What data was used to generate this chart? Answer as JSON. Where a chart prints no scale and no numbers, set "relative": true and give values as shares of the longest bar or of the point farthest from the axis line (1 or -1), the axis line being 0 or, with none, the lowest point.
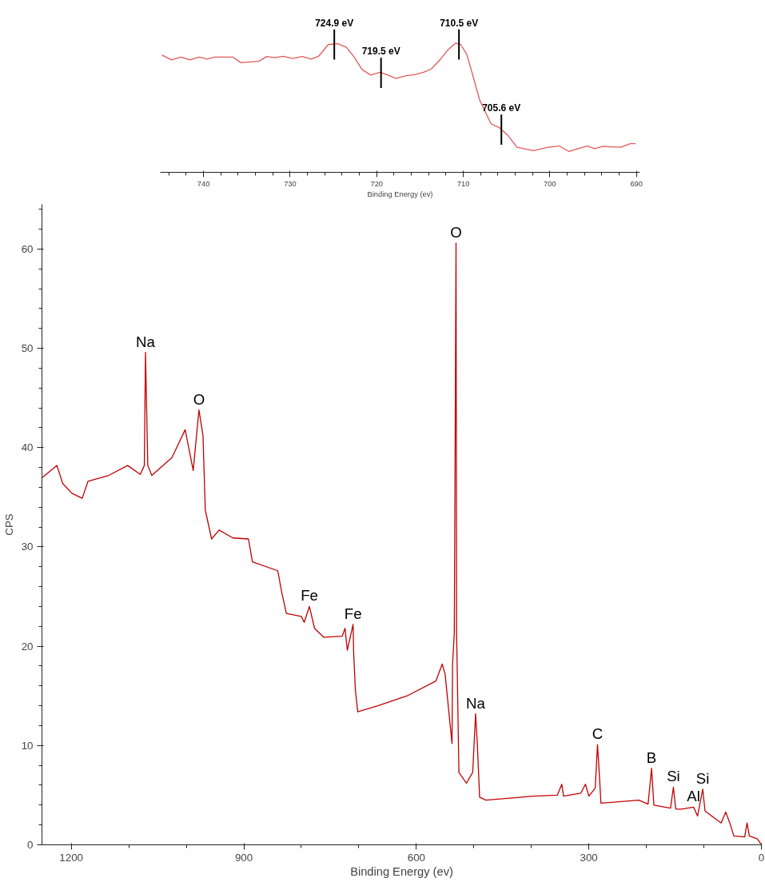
{
  "chart_data": [
    {
      "type": "line",
      "relative": true,
      "xlabel": "Binding Energy (ev)",
      "xlim": [
        745,
        689.6
      ],
      "xticks": [
        {
          "value": 744,
          "label": null
        },
        {
          "value": 742,
          "label": null
        },
        740,
        {
          "value": 738,
          "label": null
        },
        {
          "value": 736,
          "label": null
        },
        {
          "value": 734,
          "label": null
        },
        {
          "value": 732,
          "label": null
        },
        730,
        {
          "value": 728,
          "label": null
        },
        {
          "value": 726,
          "label": null
        },
        {
          "value": 724,
          "label": null
        },
        {
          "value": 722,
          "label": null
        },
        720,
        {
          "value": 718,
          "label": null
        },
        {
          "value": 716,
          "label": null
        },
        {
          "value": 714,
          "label": null
        },
        {
          "value": 712,
          "label": null
        },
        710,
        {
          "value": 708,
          "label": null
        },
        {
          "value": 706,
          "label": null
        },
        {
          "value": 704,
          "label": null
        },
        {
          "value": 702,
          "label": null
        },
        700,
        {
          "value": 698,
          "label": null
        },
        {
          "value": 696,
          "label": null
        },
        {
          "value": 694,
          "label": null
        },
        {
          "value": 692,
          "label": null
        },
        690
      ],
      "x": [
        744.8,
        743.7,
        742.6,
        741.6,
        740.5,
        739.6,
        738.7,
        736.6,
        735.7,
        733.6,
        732.7,
        731.8,
        730.8,
        729.7,
        728.6,
        727.6,
        726.7,
        725.6,
        724.5,
        723.5,
        722.6,
        721.7,
        720.7,
        719.6,
        718.7,
        717.8,
        716.6,
        715.5,
        714.6,
        713.7,
        712.7,
        711.8,
        710.9,
        710.3,
        709.6,
        709.0,
        708.1,
        706.8,
        705.8,
        704.9,
        703.8,
        701.9,
        700.2,
        698.9,
        697.8,
        695.7,
        694.8,
        693.9,
        691.8,
        690.7,
        690.1
      ],
      "series": [
        {
          "color": "#e05a5a",
          "values": [
            0.908,
            0.871,
            0.892,
            0.871,
            0.892,
            0.877,
            0.892,
            0.892,
            0.849,
            0.86,
            0.897,
            0.888,
            0.899,
            0.882,
            0.897,
            0.877,
            0.899,
            0.989,
            0.996,
            0.968,
            0.892,
            0.796,
            0.753,
            0.774,
            0.753,
            0.727,
            0.748,
            0.757,
            0.774,
            0.8,
            0.871,
            0.946,
            1.0,
            0.989,
            0.914,
            0.774,
            0.559,
            0.376,
            0.344,
            0.29,
            0.194,
            0.168,
            0.194,
            0.204,
            0.161,
            0.204,
            0.183,
            0.2,
            0.194,
            0.222,
            0.222
          ]
        }
      ],
      "annotations": [
        {
          "text": "724.9 eV",
          "x": 724.9,
          "y": 0.99
        },
        {
          "text": "719.5 eV",
          "x": 719.5,
          "y": 0.77
        },
        {
          "text": "710.5 eV",
          "x": 710.5,
          "y": 0.99
        },
        {
          "text": "705.6 eV",
          "x": 705.6,
          "y": 0.33
        }
      ]
    },
    {
      "type": "line",
      "xlabel": "Binding Energy (ev)",
      "ylabel": "CPS",
      "xlim": [
        1251,
        0
      ],
      "ylim": [
        0,
        64.5
      ],
      "xticks": [
        1200,
        {
          "value": 1100,
          "label": null
        },
        {
          "value": 1000,
          "label": null
        },
        900,
        {
          "value": 800,
          "label": null
        },
        {
          "value": 700,
          "label": null
        },
        600,
        {
          "value": 500,
          "label": null
        },
        {
          "value": 400,
          "label": null
        },
        300,
        {
          "value": 200,
          "label": null
        },
        {
          "value": 100,
          "label": null
        },
        0
      ],
      "yticks": [
        0,
        {
          "value": 2,
          "label": null
        },
        {
          "value": 4,
          "label": null
        },
        {
          "value": 6,
          "label": null
        },
        {
          "value": 8,
          "label": null
        },
        10,
        {
          "value": 12,
          "label": null
        },
        {
          "value": 14,
          "label": null
        },
        {
          "value": 16,
          "label": null
        },
        {
          "value": 18,
          "label": null
        },
        20,
        {
          "value": 22,
          "label": null
        },
        {
          "value": 24,
          "label": null
        },
        {
          "value": 26,
          "label": null
        },
        {
          "value": 28,
          "label": null
        },
        30,
        {
          "value": 32,
          "label": null
        },
        {
          "value": 34,
          "label": null
        },
        {
          "value": 36,
          "label": null
        },
        {
          "value": 38,
          "label": null
        },
        40,
        {
          "value": 42,
          "label": null
        },
        {
          "value": 44,
          "label": null
        },
        {
          "value": 46,
          "label": null
        },
        {
          "value": 48,
          "label": null
        },
        50,
        {
          "value": 52,
          "label": null
        },
        {
          "value": 54,
          "label": null
        },
        {
          "value": 56,
          "label": null
        },
        {
          "value": 58,
          "label": null
        },
        60,
        {
          "value": 62,
          "label": null
        },
        {
          "value": 64,
          "label": null
        }
      ],
      "x": [
        1250,
        1225,
        1215,
        1199,
        1181,
        1171,
        1135,
        1102,
        1080,
        1073,
        1071,
        1067,
        1060,
        1025,
        1016,
        1002,
        988,
        978,
        971,
        967,
        956,
        943,
        919,
        892,
        885,
        841,
        834,
        826,
        800,
        795,
        786,
        777,
        761,
        729,
        724,
        720,
        710,
        709,
        706,
        702,
        667,
        616,
        566,
        555,
        550,
        538,
        537,
        534,
        531,
        530,
        526,
        513,
        502,
        497,
        494,
        490,
        479,
        396,
        355,
        347,
        344,
        314,
        306,
        300,
        289,
        285,
        282,
        279,
        213,
        197,
        191,
        187,
        158,
        153,
        149,
        139,
        118,
        111,
        102,
        98,
        70,
        62,
        55,
        48,
        29,
        25,
        21,
        7,
        1
      ],
      "series": [
        {
          "color": "#c00000",
          "values": [
            37.0,
            38.2,
            36.4,
            35.4,
            34.9,
            36.6,
            37.2,
            38.2,
            37.3,
            38.2,
            49.6,
            38.2,
            37.2,
            39.0,
            40.1,
            41.8,
            37.7,
            43.8,
            41.2,
            33.7,
            30.8,
            31.7,
            30.9,
            30.8,
            28.5,
            27.6,
            25.4,
            23.3,
            23.0,
            22.4,
            24.0,
            21.8,
            20.9,
            21.0,
            21.8,
            19.6,
            22.2,
            19.3,
            15.6,
            13.4,
            14.0,
            15.0,
            16.5,
            18.2,
            17.2,
            10.2,
            18.2,
            21.4,
            60.6,
            21.4,
            7.3,
            6.2,
            7.3,
            13.2,
            10.2,
            4.8,
            4.5,
            4.9,
            5.0,
            6.1,
            4.9,
            5.2,
            6.1,
            4.9,
            5.7,
            10.1,
            7.3,
            4.2,
            4.5,
            4.1,
            7.7,
            4.0,
            3.7,
            5.8,
            3.6,
            3.6,
            3.8,
            2.9,
            5.6,
            3.4,
            2.2,
            3.3,
            2.2,
            0.9,
            0.8,
            2.2,
            0.9,
            0.6,
            0.1
          ]
        }
      ],
      "annotations": [
        {
          "text": "Na",
          "x": 1071,
          "y": 49.6
        },
        {
          "text": "O",
          "x": 978,
          "y": 43.8
        },
        {
          "text": "Fe",
          "x": 786,
          "y": 24.0
        },
        {
          "text": "Fe",
          "x": 710,
          "y": 22.2
        },
        {
          "text": "O",
          "x": 531,
          "y": 60.6
        },
        {
          "text": "Na",
          "x": 497,
          "y": 13.2
        },
        {
          "text": "C",
          "x": 285,
          "y": 10.1
        },
        {
          "text": "B",
          "x": 191,
          "y": 7.7
        },
        {
          "text": "Si",
          "x": 153,
          "y": 5.8
        },
        {
          "text": "Al",
          "x": 118,
          "y": 3.8
        },
        {
          "text": "Si",
          "x": 102,
          "y": 5.6
        }
      ]
    }
  ]
}
